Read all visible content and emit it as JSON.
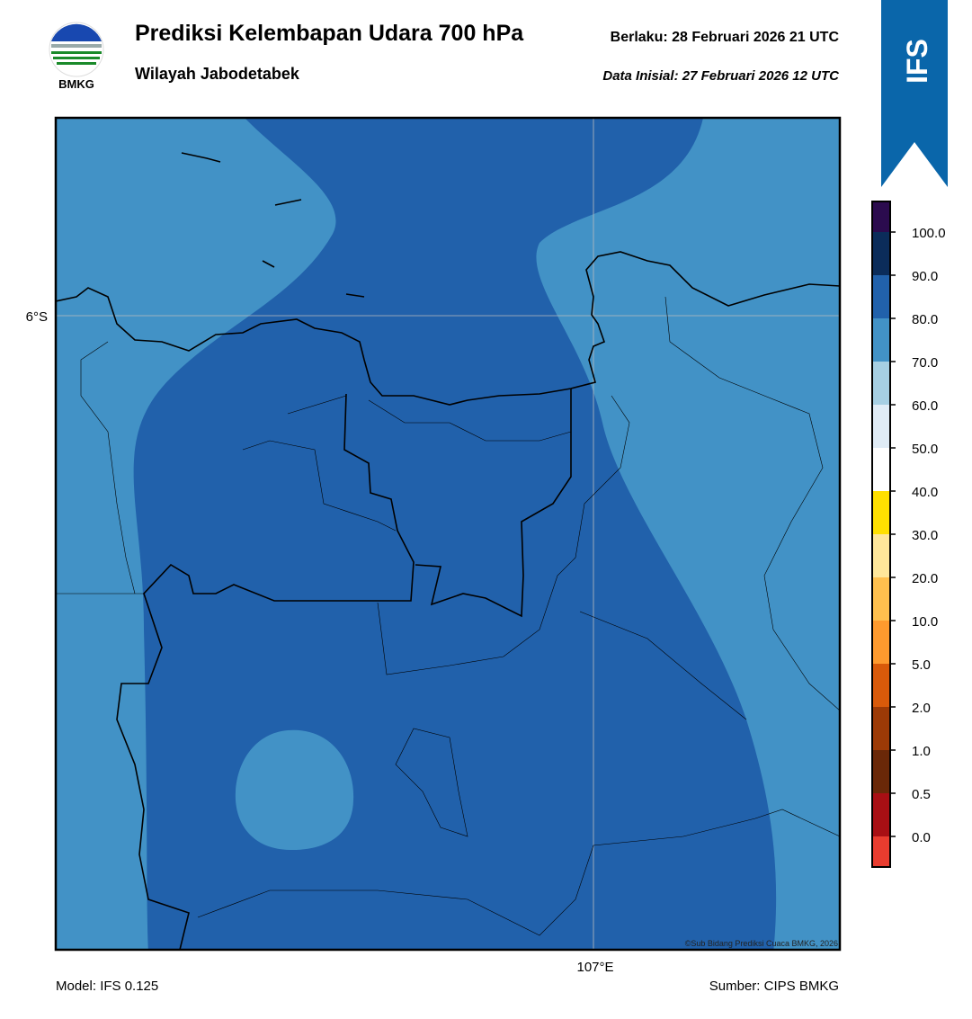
{
  "header": {
    "title": "Prediksi Kelembapan Udara 700 hPa",
    "subtitle": "Wilayah Jabodetabek",
    "valid": "Berlaku:  28 Februari 2026 21 UTC",
    "initial": "Data Inisial:  27 Februari 2026 12 UTC",
    "logo": "BMKG",
    "badge": "IFS"
  },
  "map": {
    "lat_label": "6°S",
    "lon_label": "107°E",
    "credit": "©Sub Bidang Prediksi Cuaca BMKG, 2026"
  },
  "colorbar": {
    "labels": [
      "100.0",
      "90.0",
      "80.0",
      "70.0",
      "60.0",
      "50.0",
      "40.0",
      "30.0",
      "20.0",
      "10.0",
      "5.0",
      "2.0",
      "1.0",
      "0.5",
      "0.0"
    ],
    "colors": [
      "#2b0b4e",
      "#0b2c5a",
      "#2161ab",
      "#4292c6",
      "#a6cfe3",
      "#e0ecf6",
      "#ffffff",
      "#ffe000",
      "#ffe79a",
      "#ffc04e",
      "#fe9a2e",
      "#d95a0a",
      "#9c3a06",
      "#6a2808",
      "#a80f14",
      "#e83c2f"
    ]
  },
  "footer": {
    "model": "Model: IFS 0.125",
    "source": "Sumber: CIPS BMKG"
  }
}
